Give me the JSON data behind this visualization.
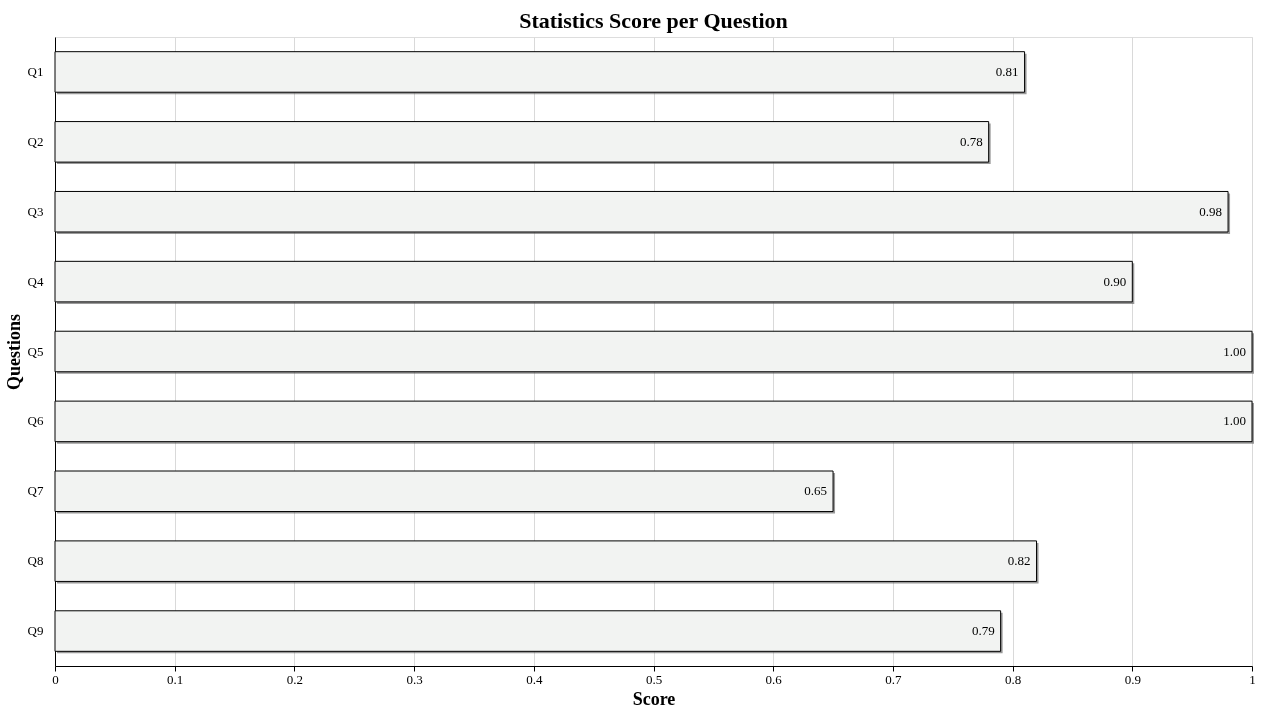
{
  "chart_data": {
    "type": "bar",
    "orientation": "horizontal",
    "title": "Statistics Score per Question",
    "xlabel": "Score",
    "ylabel": "Questions",
    "categories": [
      "Q1",
      "Q2",
      "Q3",
      "Q4",
      "Q5",
      "Q6",
      "Q7",
      "Q8",
      "Q9"
    ],
    "values": [
      0.81,
      0.78,
      0.98,
      0.9,
      1.0,
      1.0,
      0.65,
      0.82,
      0.79
    ],
    "value_labels": [
      "0.81",
      "0.78",
      "0.98",
      "0.90",
      "1.00",
      "1.00",
      "0.65",
      "0.82",
      "0.79"
    ],
    "color": "#f2f3f2",
    "xlim": [
      0,
      1
    ],
    "xticks": [
      0,
      0.1,
      0.2,
      0.3,
      0.4,
      0.5,
      0.6,
      0.7,
      0.8,
      0.9,
      1
    ],
    "grid": "x"
  }
}
